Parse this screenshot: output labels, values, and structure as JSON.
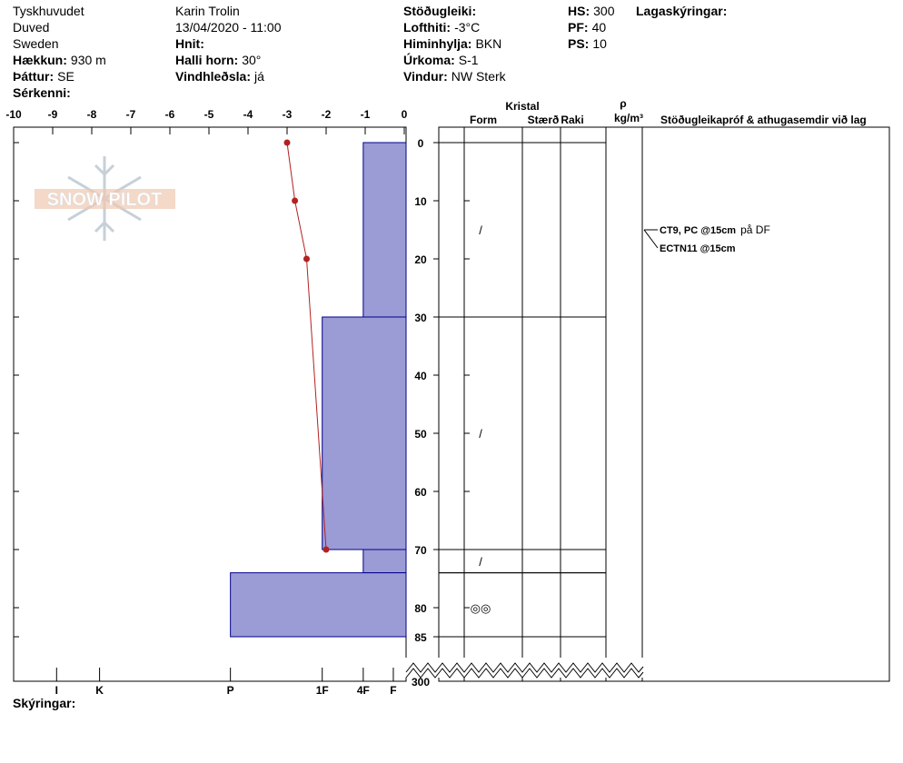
{
  "header": {
    "columns": [
      [
        {
          "text": "Tyskhuvudet"
        },
        {
          "text": "Duved"
        },
        {
          "text": "Sweden"
        },
        {
          "label": "Hækkun:",
          "value": "930 m"
        },
        {
          "label": "Þáttur:",
          "value": "SE"
        },
        {
          "label": "Sérkenni:"
        }
      ],
      [
        {
          "text": "Karin Trolin"
        },
        {
          "text": "13/04/2020 - 11:00"
        },
        {
          "label": "Hnit:"
        },
        {
          "label": "Halli horn:",
          "value": "30°"
        },
        {
          "label": "Vindhleðsla:",
          "value": "já"
        }
      ],
      [
        {
          "label": "Stöðugleiki:"
        },
        {
          "label": "Lofthiti:",
          "value": "-3°C"
        },
        {
          "label": "Himinhylja:",
          "value": "BKN"
        },
        {
          "label": "Úrkoma:",
          "value": "S-1"
        },
        {
          "label": "Vindur:",
          "value": "NW Sterk"
        }
      ],
      [
        {
          "label": "HS:",
          "value": "300"
        },
        {
          "label": "PF:",
          "value": "40"
        },
        {
          "label": "PS:",
          "value": "10"
        }
      ],
      [
        {
          "label": "Lagaskýringar:"
        }
      ]
    ]
  },
  "logo": "SNOW PILOT",
  "temperature_axis": {
    "lim": [
      -10,
      0
    ],
    "ticks": [
      -10,
      -9,
      -8,
      -7,
      -6,
      -5,
      -4,
      -3,
      -2,
      -1,
      0
    ]
  },
  "depth_axis": {
    "lim": [
      0,
      85
    ],
    "ticks": [
      0,
      10,
      20,
      30,
      40,
      50,
      60,
      70,
      80,
      85
    ],
    "total": 300
  },
  "temperature_profile": {
    "color": "#b22222",
    "depths": [
      0,
      10,
      20,
      70
    ],
    "temps": [
      -3,
      -2.8,
      -2.5,
      -2
    ]
  },
  "hardness_scale": [
    {
      "label": "I",
      "value": -8.9
    },
    {
      "label": "K",
      "value": -7.8
    },
    {
      "label": "P",
      "value": -4.45
    },
    {
      "label": "1F",
      "value": -2.1
    },
    {
      "label": "4F",
      "value": -1.05
    },
    {
      "label": "F",
      "value": -0.28
    }
  ],
  "layer_color": "#9b9bd6",
  "layers": [
    {
      "top": 0,
      "bottom": 30,
      "hardness": "4F"
    },
    {
      "top": 30,
      "bottom": 70,
      "hardness": "1F"
    },
    {
      "top": 70,
      "bottom": 74,
      "hardness": "4F"
    },
    {
      "top": 74,
      "bottom": 85,
      "hardness": "P"
    }
  ],
  "columns": {
    "group": "Kristal",
    "form": "Form",
    "size": "Stærð",
    "wetness": "Raki",
    "rho": "ρ",
    "rho_unit": "kg/m³",
    "tests": "Stöðugleikapróf & athugasemdir við lag"
  },
  "crystals": [
    {
      "depth": 15,
      "symbol": "/"
    },
    {
      "depth": 50,
      "symbol": "/"
    },
    {
      "depth": 72,
      "symbol": "/"
    },
    {
      "depth": 80,
      "symbol": "◎◎"
    }
  ],
  "tests": [
    {
      "depth": 15,
      "text": "CT9, PC @15cm",
      "note": "på DF"
    },
    {
      "depth": 15,
      "text": "ECTN11 @15cm"
    }
  ],
  "footer": "Skýringar:"
}
